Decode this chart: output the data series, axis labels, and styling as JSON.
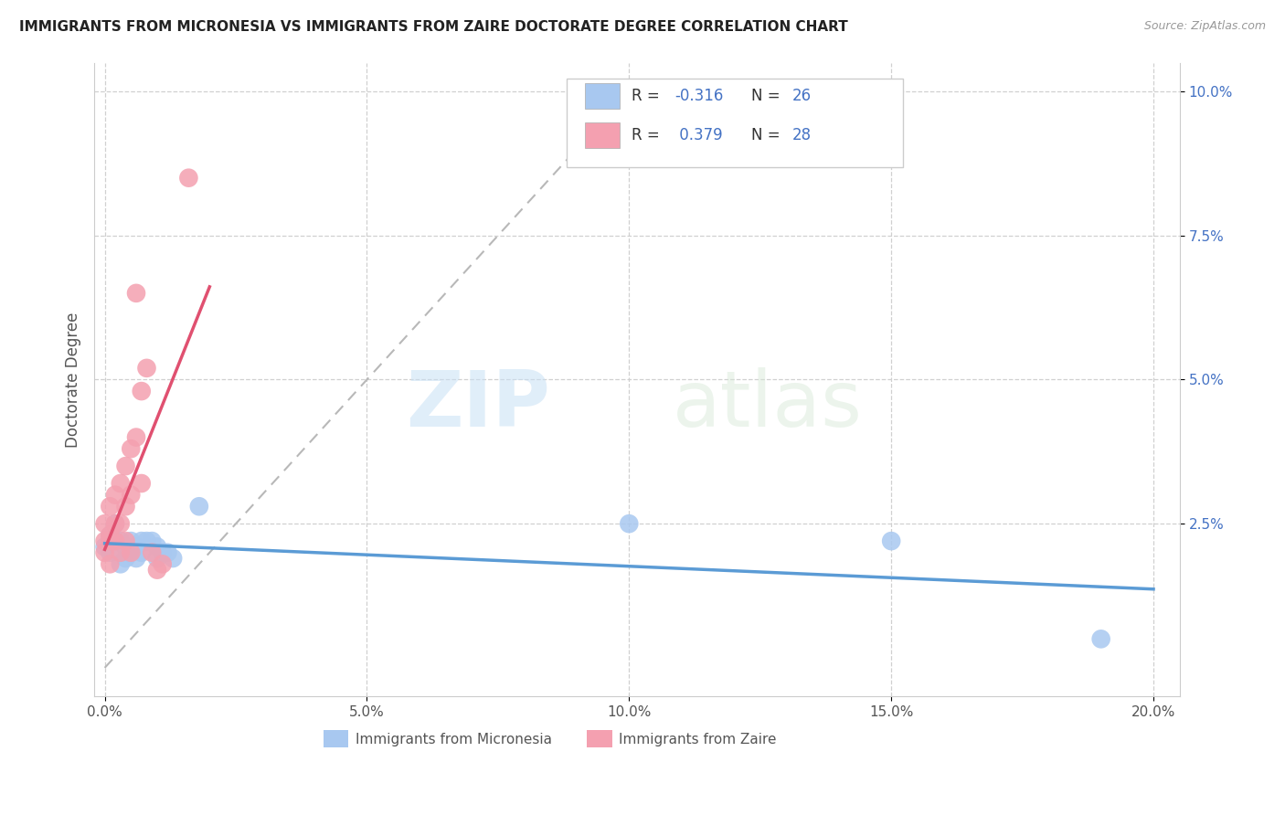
{
  "title": "IMMIGRANTS FROM MICRONESIA VS IMMIGRANTS FROM ZAIRE DOCTORATE DEGREE CORRELATION CHART",
  "source": "Source: ZipAtlas.com",
  "ylabel": "Doctorate Degree",
  "xlabel_ticks": [
    "0.0%",
    "5.0%",
    "10.0%",
    "15.0%",
    "20.0%"
  ],
  "xlabel_vals": [
    0.0,
    0.05,
    0.1,
    0.15,
    0.2
  ],
  "ylabel_ticks": [
    "10.0%",
    "7.5%",
    "5.0%",
    "2.5%"
  ],
  "ylabel_vals": [
    0.1,
    0.075,
    0.05,
    0.025
  ],
  "xlim": [
    -0.002,
    0.205
  ],
  "ylim": [
    -0.005,
    0.105
  ],
  "micronesia_color": "#a8c8f0",
  "zaire_color": "#f4a0b0",
  "micronesia_R": -0.316,
  "micronesia_N": 26,
  "zaire_R": 0.379,
  "zaire_N": 28,
  "watermark_zip": "ZIP",
  "watermark_atlas": "atlas",
  "background_color": "#ffffff",
  "grid_color": "#d0d0d0",
  "trend_micronesia_color": "#5b9bd5",
  "trend_zaire_color": "#e05070",
  "legend_R_color": "#4472c4",
  "micronesia_scatter": [
    [
      0.0,
      0.021
    ],
    [
      0.001,
      0.023
    ],
    [
      0.001,
      0.02
    ],
    [
      0.002,
      0.025
    ],
    [
      0.002,
      0.022
    ],
    [
      0.003,
      0.022
    ],
    [
      0.003,
      0.018
    ],
    [
      0.004,
      0.021
    ],
    [
      0.004,
      0.019
    ],
    [
      0.005,
      0.022
    ],
    [
      0.005,
      0.02
    ],
    [
      0.006,
      0.021
    ],
    [
      0.006,
      0.019
    ],
    [
      0.007,
      0.022
    ],
    [
      0.007,
      0.02
    ],
    [
      0.008,
      0.022
    ],
    [
      0.009,
      0.022
    ],
    [
      0.01,
      0.021
    ],
    [
      0.01,
      0.019
    ],
    [
      0.011,
      0.02
    ],
    [
      0.012,
      0.02
    ],
    [
      0.013,
      0.019
    ],
    [
      0.018,
      0.028
    ],
    [
      0.1,
      0.025
    ],
    [
      0.15,
      0.022
    ],
    [
      0.19,
      0.005
    ]
  ],
  "zaire_scatter": [
    [
      0.0,
      0.025
    ],
    [
      0.0,
      0.022
    ],
    [
      0.0,
      0.02
    ],
    [
      0.001,
      0.028
    ],
    [
      0.001,
      0.023
    ],
    [
      0.001,
      0.022
    ],
    [
      0.001,
      0.018
    ],
    [
      0.002,
      0.03
    ],
    [
      0.002,
      0.025
    ],
    [
      0.002,
      0.022
    ],
    [
      0.003,
      0.032
    ],
    [
      0.003,
      0.025
    ],
    [
      0.003,
      0.02
    ],
    [
      0.004,
      0.035
    ],
    [
      0.004,
      0.028
    ],
    [
      0.004,
      0.022
    ],
    [
      0.005,
      0.038
    ],
    [
      0.005,
      0.03
    ],
    [
      0.005,
      0.02
    ],
    [
      0.006,
      0.04
    ],
    [
      0.006,
      0.065
    ],
    [
      0.007,
      0.048
    ],
    [
      0.007,
      0.032
    ],
    [
      0.008,
      0.052
    ],
    [
      0.009,
      0.02
    ],
    [
      0.01,
      0.017
    ],
    [
      0.011,
      0.018
    ],
    [
      0.016,
      0.085
    ]
  ]
}
